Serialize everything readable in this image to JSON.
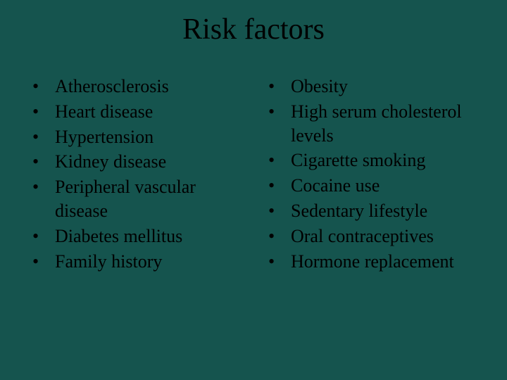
{
  "slide": {
    "title": "Risk factors",
    "background_color": "#15544e",
    "text_color": "#000000",
    "font_family": "Times New Roman",
    "title_fontsize": 42,
    "body_fontsize": 26,
    "bullet_char": "•",
    "columns": [
      {
        "items": [
          "Atherosclerosis",
          "Heart disease",
          "Hypertension",
          "Kidney disease",
          "Peripheral vascular disease",
          "Diabetes mellitus",
          "Family history"
        ]
      },
      {
        "items": [
          "Obesity",
          "High serum cholesterol levels",
          "Cigarette smoking",
          "Cocaine use",
          "Sedentary lifestyle",
          "Oral contraceptives",
          "Hormone replacement"
        ]
      }
    ]
  }
}
